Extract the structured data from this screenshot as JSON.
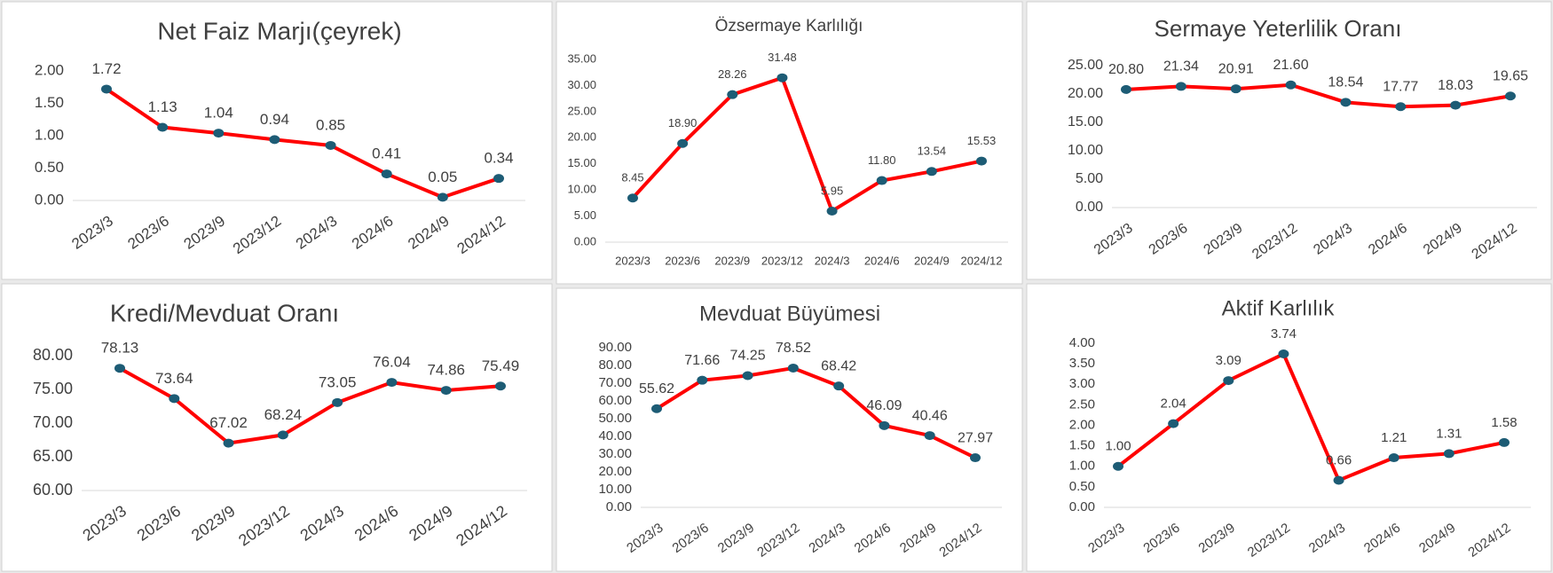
{
  "chart_data": [
    {
      "type": "line",
      "title": "Net Faiz Marjı(çeyrek)",
      "categories": [
        "2023/3",
        "2023/6",
        "2023/9",
        "2023/12",
        "2024/3",
        "2024/6",
        "2024/9",
        "2024/12"
      ],
      "series": [
        {
          "color": "#ff0000",
          "marker_color": "#1d5c75",
          "values": [
            1.72,
            1.13,
            1.04,
            0.94,
            0.85,
            0.41,
            0.05,
            0.34
          ],
          "value_labels": [
            "1.72",
            "1.13",
            "1.04",
            "0.94",
            "0.85",
            "0.41",
            "0.05",
            "0.34"
          ]
        }
      ],
      "ylim": [
        0,
        2
      ],
      "yticks": [
        {
          "value": 0,
          "label": "0.00"
        },
        {
          "value": 0.5,
          "label": "0.50"
        },
        {
          "value": 1,
          "label": "1.00"
        },
        {
          "value": 1.5,
          "label": "1.50"
        },
        {
          "value": 2,
          "label": "2.00"
        }
      ],
      "grid": false
    },
    {
      "type": "line",
      "title": "Özsermaye Karlılığı",
      "categories": [
        "2023/3",
        "2023/6",
        "2023/9",
        "2023/12",
        "2024/3",
        "2024/6",
        "2024/9",
        "2024/12"
      ],
      "series": [
        {
          "color": "#ff0000",
          "marker_color": "#1d5c75",
          "values": [
            8.45,
            18.9,
            28.26,
            31.48,
            5.95,
            11.8,
            13.54,
            15.53
          ],
          "value_labels": [
            "8.45",
            "18.90",
            "28.26",
            "31.48",
            "5.95",
            "11.80",
            "13.54",
            "15.53"
          ]
        }
      ],
      "ylim": [
        0,
        35
      ],
      "yticks": [
        {
          "value": 0,
          "label": "0.00"
        },
        {
          "value": 5,
          "label": "5.00"
        },
        {
          "value": 10,
          "label": "10.00"
        },
        {
          "value": 15,
          "label": "15.00"
        },
        {
          "value": 20,
          "label": "20.00"
        },
        {
          "value": 25,
          "label": "25.00"
        },
        {
          "value": 30,
          "label": "30.00"
        },
        {
          "value": 35,
          "label": "35.00"
        }
      ],
      "grid": false
    },
    {
      "type": "line",
      "title": "Sermaye Yeterlilik Oranı",
      "categories": [
        "2023/3",
        "2023/6",
        "2023/9",
        "2023/12",
        "2024/3",
        "2024/6",
        "2024/9",
        "2024/12"
      ],
      "series": [
        {
          "color": "#ff0000",
          "marker_color": "#1d5c75",
          "values": [
            20.8,
            21.34,
            20.91,
            21.6,
            18.54,
            17.77,
            18.03,
            19.65
          ],
          "value_labels": [
            "20.80",
            "21.34",
            "20.91",
            "21.60",
            "18.54",
            "17.77",
            "18.03",
            "19.65"
          ]
        }
      ],
      "ylim": [
        0,
        25
      ],
      "yticks": [
        {
          "value": 0,
          "label": "0.00"
        },
        {
          "value": 5,
          "label": "5.00"
        },
        {
          "value": 10,
          "label": "10.00"
        },
        {
          "value": 15,
          "label": "15.00"
        },
        {
          "value": 20,
          "label": "20.00"
        },
        {
          "value": 25,
          "label": "25.00"
        }
      ],
      "grid": false
    },
    {
      "type": "line",
      "title": "Kredi/Mevduat Oranı",
      "categories": [
        "2023/3",
        "2023/6",
        "2023/9",
        "2023/12",
        "2024/3",
        "2024/6",
        "2024/9",
        "2024/12"
      ],
      "series": [
        {
          "color": "#ff0000",
          "marker_color": "#1d5c75",
          "values": [
            78.13,
            73.64,
            67.02,
            68.24,
            73.05,
            76.04,
            74.86,
            75.49
          ],
          "value_labels": [
            "78.13",
            "73.64",
            "67.02",
            "68.24",
            "73.05",
            "76.04",
            "74.86",
            "75.49"
          ]
        }
      ],
      "ylim": [
        60,
        80
      ],
      "yticks": [
        {
          "value": 60,
          "label": "60.00"
        },
        {
          "value": 65,
          "label": "65.00"
        },
        {
          "value": 70,
          "label": "70.00"
        },
        {
          "value": 75,
          "label": "75.00"
        },
        {
          "value": 80,
          "label": "80.00"
        }
      ],
      "grid": false
    },
    {
      "type": "line",
      "title": "Mevduat Büyümesi",
      "categories": [
        "2023/3",
        "2023/6",
        "2023/9",
        "2023/12",
        "2024/3",
        "2024/6",
        "2024/9",
        "2024/12"
      ],
      "series": [
        {
          "color": "#ff0000",
          "marker_color": "#1d5c75",
          "values": [
            55.62,
            71.66,
            74.25,
            78.52,
            68.42,
            46.09,
            40.46,
            27.97
          ],
          "value_labels": [
            "55.62",
            "71.66",
            "74.25",
            "78.52",
            "68.42",
            "46.09",
            "40.46",
            "27.97"
          ]
        }
      ],
      "ylim": [
        0,
        90
      ],
      "yticks": [
        {
          "value": 0,
          "label": "0.00"
        },
        {
          "value": 10,
          "label": "10.00"
        },
        {
          "value": 20,
          "label": "20.00"
        },
        {
          "value": 30,
          "label": "30.00"
        },
        {
          "value": 40,
          "label": "40.00"
        },
        {
          "value": 50,
          "label": "50.00"
        },
        {
          "value": 60,
          "label": "60.00"
        },
        {
          "value": 70,
          "label": "70.00"
        },
        {
          "value": 80,
          "label": "80.00"
        },
        {
          "value": 90,
          "label": "90.00"
        }
      ],
      "grid": false
    },
    {
      "type": "line",
      "title": "Aktif Karlılık",
      "categories": [
        "2023/3",
        "2023/6",
        "2023/9",
        "2023/12",
        "2024/3",
        "2024/6",
        "2024/9",
        "2024/12"
      ],
      "series": [
        {
          "color": "#ff0000",
          "marker_color": "#1d5c75",
          "values": [
            1,
            2.04,
            3.09,
            3.74,
            0.66,
            1.21,
            1.31,
            1.58
          ],
          "value_labels": [
            "1.00",
            "2.04",
            "3.09",
            "3.74",
            "0.66",
            "1.21",
            "1.31",
            "1.58"
          ]
        }
      ],
      "ylim": [
        0,
        4
      ],
      "yticks": [
        {
          "value": 0,
          "label": "0.00"
        },
        {
          "value": 0.5,
          "label": "0.50"
        },
        {
          "value": 1,
          "label": "1.00"
        },
        {
          "value": 1.5,
          "label": "1.50"
        },
        {
          "value": 2,
          "label": "2.00"
        },
        {
          "value": 2.5,
          "label": "2.50"
        },
        {
          "value": 3,
          "label": "3.00"
        },
        {
          "value": 3.5,
          "label": "3.50"
        },
        {
          "value": 4,
          "label": "4.00"
        }
      ],
      "grid": false
    }
  ]
}
